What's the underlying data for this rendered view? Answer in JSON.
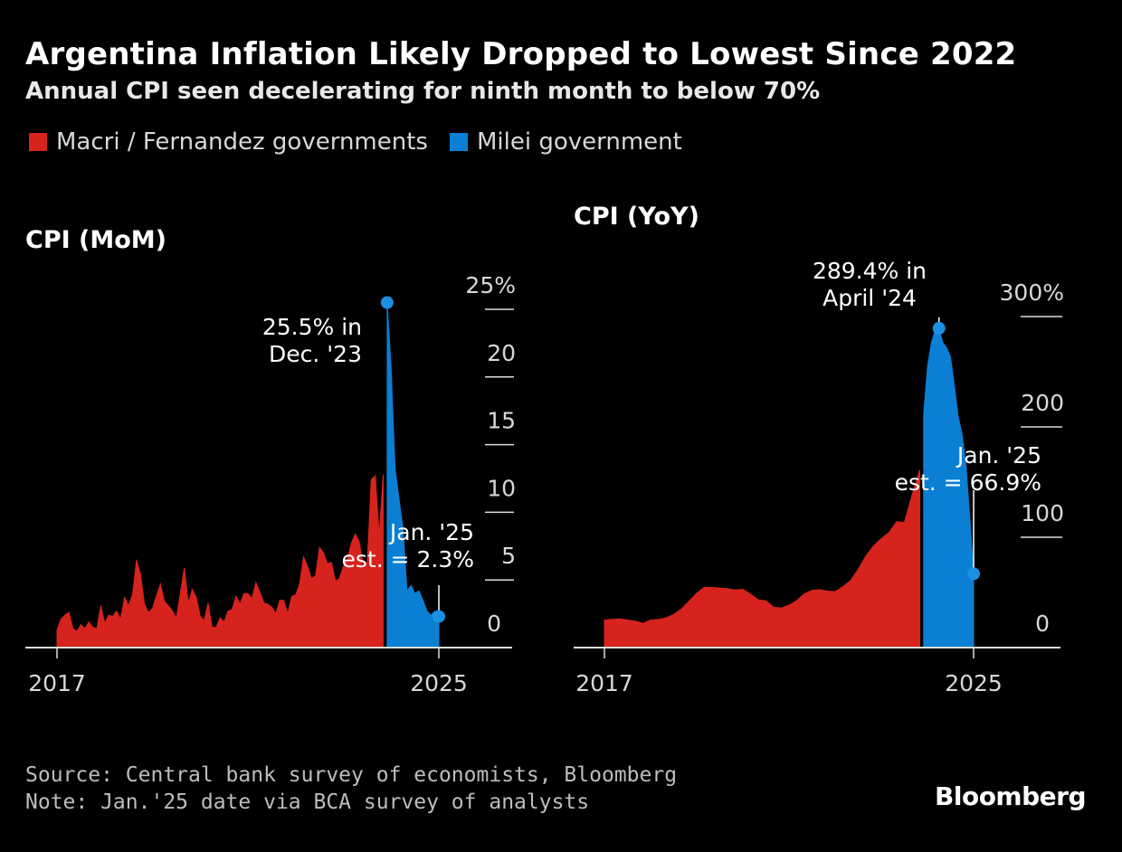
{
  "title": "Argentina Inflation Likely Dropped to Lowest Since 2022",
  "subtitle": "Annual CPI seen decelerating for ninth month to below 70%",
  "legend": [
    {
      "label": "Macri / Fernandez governments",
      "color": "#d6231e"
    },
    {
      "label": "Milei government",
      "color": "#0b7fd3"
    }
  ],
  "colors": {
    "macri_fernandez": "#d6231e",
    "milei": "#0b7fd3",
    "marker": "#1a8fe3"
  },
  "footer": {
    "source": "Source: Central bank survey of economists, Bloomberg",
    "note": "Note: Jan.'25 date via BCA survey of analysts"
  },
  "brand": "Bloomberg",
  "chart_data": [
    {
      "type": "area",
      "title": "CPI (MoM)",
      "xlabel": "",
      "ylabel": "",
      "x_tick_labels": [
        "2017",
        "2025"
      ],
      "x_range": [
        "2017-01",
        "2025-01"
      ],
      "ylim": [
        0,
        25
      ],
      "y_ticks": [
        0,
        5,
        10,
        15,
        20,
        25
      ],
      "y_tick_labels": [
        "0",
        "5",
        "10",
        "15",
        "20",
        "25%"
      ],
      "series": [
        {
          "key": "macri_fernandez",
          "x": [
            "2017-01",
            "2017-02",
            "2017-03",
            "2017-04",
            "2017-05",
            "2017-06",
            "2017-07",
            "2017-08",
            "2017-09",
            "2017-10",
            "2017-11",
            "2017-12",
            "2018-01",
            "2018-02",
            "2018-03",
            "2018-04",
            "2018-05",
            "2018-06",
            "2018-07",
            "2018-08",
            "2018-09",
            "2018-10",
            "2018-11",
            "2018-12",
            "2019-01",
            "2019-02",
            "2019-03",
            "2019-04",
            "2019-05",
            "2019-06",
            "2019-07",
            "2019-08",
            "2019-09",
            "2019-10",
            "2019-11",
            "2019-12",
            "2020-01",
            "2020-02",
            "2020-03",
            "2020-04",
            "2020-05",
            "2020-06",
            "2020-07",
            "2020-08",
            "2020-09",
            "2020-10",
            "2020-11",
            "2020-12",
            "2021-01",
            "2021-02",
            "2021-03",
            "2021-04",
            "2021-05",
            "2021-06",
            "2021-07",
            "2021-08",
            "2021-09",
            "2021-10",
            "2021-11",
            "2021-12",
            "2022-01",
            "2022-02",
            "2022-03",
            "2022-04",
            "2022-05",
            "2022-06",
            "2022-07",
            "2022-08",
            "2022-09",
            "2022-10",
            "2022-11",
            "2022-12",
            "2023-01",
            "2023-02",
            "2023-03",
            "2023-04",
            "2023-05",
            "2023-06",
            "2023-07",
            "2023-08",
            "2023-09",
            "2023-10",
            "2023-11"
          ],
          "values": [
            1.3,
            2.1,
            2.4,
            2.6,
            1.4,
            1.2,
            1.7,
            1.4,
            1.9,
            1.5,
            1.4,
            3.1,
            1.8,
            2.4,
            2.3,
            2.7,
            2.1,
            3.7,
            3.1,
            3.9,
            6.5,
            5.4,
            3.2,
            2.6,
            2.9,
            3.8,
            4.7,
            3.4,
            3.1,
            2.7,
            2.2,
            4.0,
            5.9,
            3.3,
            4.3,
            3.7,
            2.3,
            2.0,
            3.3,
            1.5,
            1.5,
            2.2,
            1.9,
            2.7,
            2.8,
            3.8,
            3.2,
            4.0,
            4.0,
            3.6,
            4.8,
            4.1,
            3.3,
            3.2,
            3.0,
            2.5,
            3.5,
            3.5,
            2.5,
            3.8,
            3.9,
            4.7,
            6.7,
            6.0,
            5.1,
            5.3,
            7.4,
            7.0,
            6.2,
            6.3,
            4.9,
            5.1,
            6.0,
            6.6,
            7.7,
            8.4,
            7.8,
            6.0,
            6.3,
            12.4,
            12.7,
            8.3,
            12.8
          ]
        },
        {
          "key": "milei",
          "x": [
            "2023-12",
            "2024-01",
            "2024-02",
            "2024-03",
            "2024-04",
            "2024-05",
            "2024-06",
            "2024-07",
            "2024-08",
            "2024-09",
            "2024-10",
            "2024-11",
            "2024-12",
            "2025-01"
          ],
          "values": [
            25.5,
            20.6,
            13.2,
            11.0,
            8.8,
            4.2,
            4.6,
            4.0,
            4.2,
            3.5,
            2.7,
            2.4,
            2.7,
            2.3
          ]
        }
      ],
      "annotations": [
        {
          "lines": [
            "25.5% in",
            "Dec. '23"
          ],
          "x": "2023-12",
          "y": 25.5
        },
        {
          "lines": [
            "Jan. '25",
            "est. = 2.3%"
          ],
          "x": "2025-01",
          "y": 2.3
        }
      ]
    },
    {
      "type": "area",
      "title": "CPI (YoY)",
      "xlabel": "",
      "ylabel": "",
      "x_tick_labels": [
        "2017",
        "2025"
      ],
      "x_range": [
        "2017-01",
        "2025-01"
      ],
      "ylim": [
        0,
        300
      ],
      "y_ticks": [
        0,
        100,
        200,
        300
      ],
      "y_tick_labels": [
        "0",
        "100",
        "200",
        "300%"
      ],
      "series": [
        {
          "key": "macri_fernandez",
          "x": [
            "2017-01",
            "2017-03",
            "2017-05",
            "2017-07",
            "2017-09",
            "2017-11",
            "2018-01",
            "2018-03",
            "2018-05",
            "2018-07",
            "2018-09",
            "2018-11",
            "2019-01",
            "2019-03",
            "2019-05",
            "2019-07",
            "2019-09",
            "2019-11",
            "2020-01",
            "2020-03",
            "2020-05",
            "2020-07",
            "2020-09",
            "2020-11",
            "2021-01",
            "2021-03",
            "2021-05",
            "2021-07",
            "2021-09",
            "2021-11",
            "2022-01",
            "2022-03",
            "2022-05",
            "2022-07",
            "2022-09",
            "2022-11",
            "2023-01",
            "2023-03",
            "2023-05",
            "2023-07",
            "2023-09",
            "2023-11"
          ],
          "values": [
            25,
            25.5,
            26,
            25,
            24,
            22,
            25,
            25.5,
            27,
            30,
            35,
            42,
            49.3,
            54.7,
            54.5,
            54,
            53.5,
            52.1,
            52.9,
            48.4,
            43.4,
            42.4,
            36.6,
            35.8,
            38.5,
            42.6,
            48.8,
            51.8,
            52.5,
            51.2,
            50.7,
            55.1,
            60.7,
            71,
            83,
            92.4,
            98.8,
            104.3,
            114.2,
            113.4,
            138.3,
            160.9
          ]
        },
        {
          "key": "milei",
          "x": [
            "2023-12",
            "2024-01",
            "2024-02",
            "2024-03",
            "2024-04",
            "2024-05",
            "2024-06",
            "2024-07",
            "2024-08",
            "2024-09",
            "2024-10",
            "2024-11",
            "2024-12",
            "2025-01"
          ],
          "values": [
            211.4,
            254.2,
            276.2,
            287.9,
            289.4,
            276.4,
            271.5,
            263.4,
            236.7,
            209,
            193,
            166,
            117.8,
            66.9
          ]
        }
      ],
      "annotations": [
        {
          "lines": [
            "289.4% in",
            "April '24"
          ],
          "x": "2024-04",
          "y": 289.4
        },
        {
          "lines": [
            "Jan. '25",
            "est. = 66.9%"
          ],
          "x": "2025-01",
          "y": 66.9
        }
      ]
    }
  ]
}
